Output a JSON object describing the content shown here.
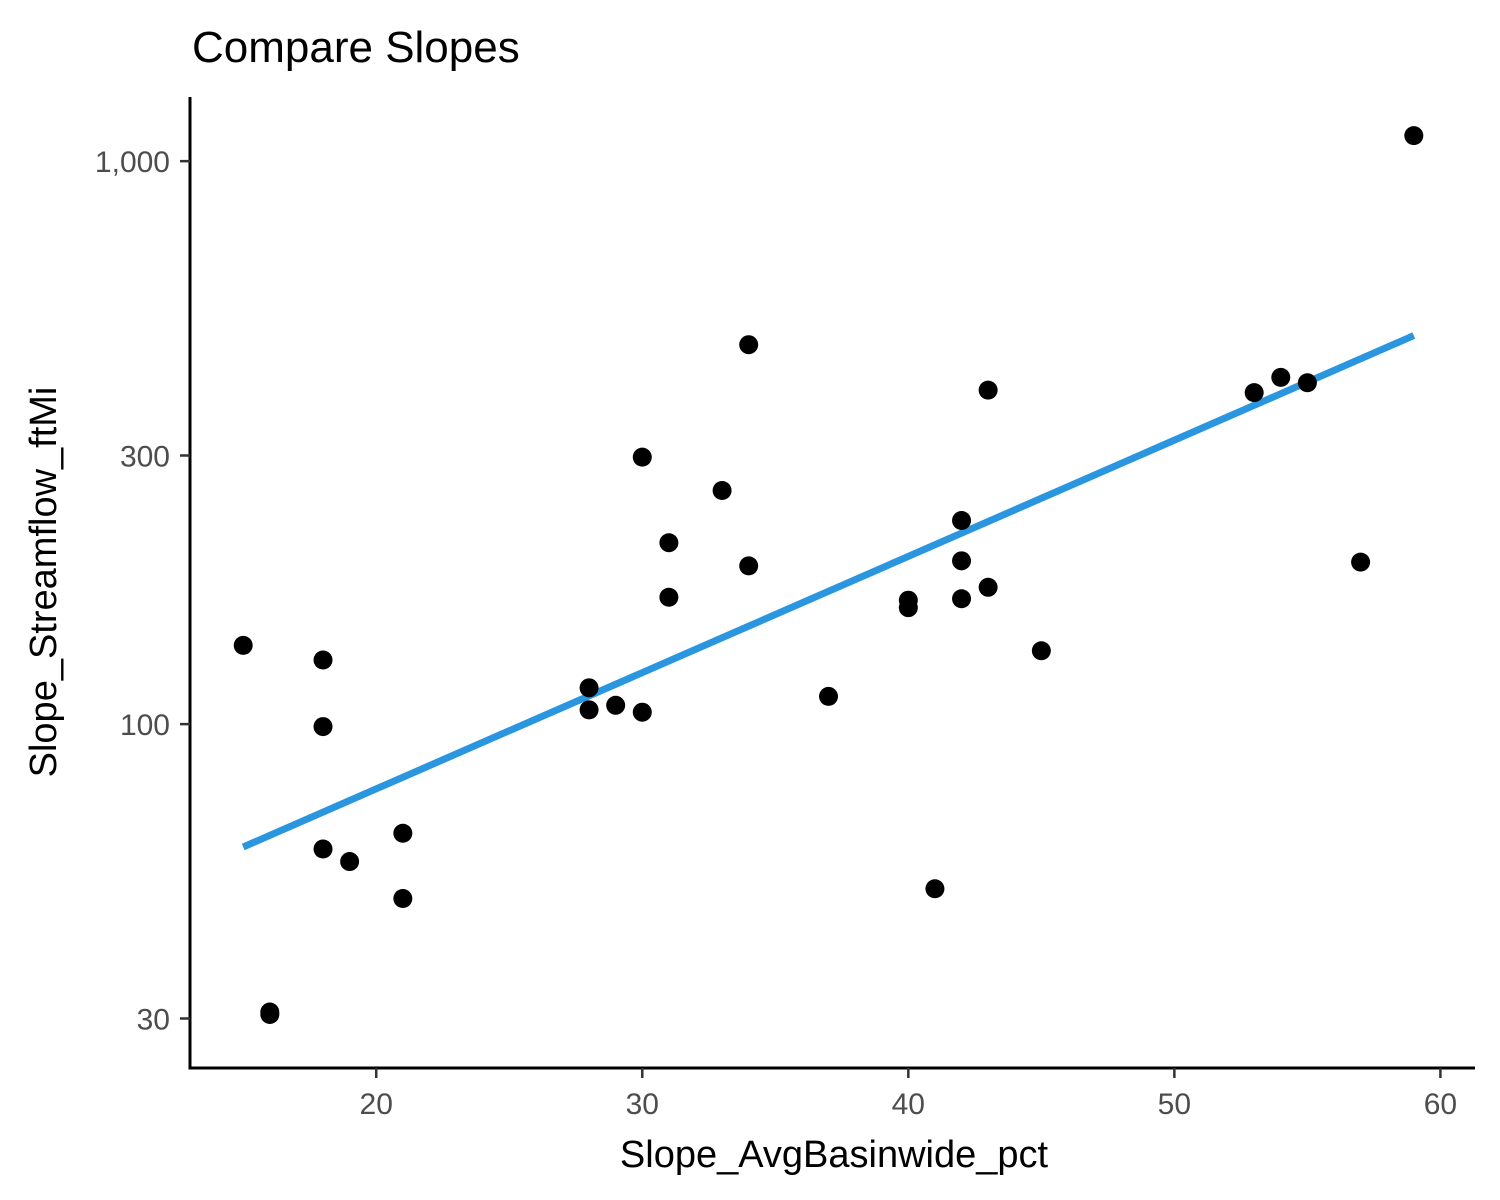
{
  "chart_data": {
    "type": "scatter",
    "title": "Compare Slopes",
    "xlabel": "Slope_AvgBasinwide_pct",
    "ylabel": "Slope_Streamflow_ftMi",
    "xlim": [
      13,
      61.3
    ],
    "ylim": [
      24.5,
      1300
    ],
    "y_scale": "log10",
    "x_ticks": [
      20,
      30,
      40,
      50,
      60
    ],
    "y_ticks": [
      30,
      100,
      300,
      1000
    ],
    "y_tick_labels": [
      "30",
      "100",
      "300",
      "1,000"
    ],
    "grid": false,
    "legend": "none",
    "point_color": "#000000",
    "trend_color": "#2b96e0",
    "points": [
      {
        "x": 15,
        "y": 138
      },
      {
        "x": 16,
        "y": 30.5
      },
      {
        "x": 16,
        "y": 30.8
      },
      {
        "x": 18,
        "y": 130
      },
      {
        "x": 18,
        "y": 99
      },
      {
        "x": 18,
        "y": 60
      },
      {
        "x": 19,
        "y": 57
      },
      {
        "x": 21,
        "y": 64
      },
      {
        "x": 21,
        "y": 49
      },
      {
        "x": 28,
        "y": 116
      },
      {
        "x": 28,
        "y": 106
      },
      {
        "x": 29,
        "y": 108
      },
      {
        "x": 30,
        "y": 105
      },
      {
        "x": 30,
        "y": 298
      },
      {
        "x": 31,
        "y": 210
      },
      {
        "x": 31,
        "y": 168
      },
      {
        "x": 33,
        "y": 260
      },
      {
        "x": 34,
        "y": 472
      },
      {
        "x": 34,
        "y": 191
      },
      {
        "x": 37,
        "y": 112
      },
      {
        "x": 40,
        "y": 166
      },
      {
        "x": 40,
        "y": 161
      },
      {
        "x": 41,
        "y": 51
      },
      {
        "x": 42,
        "y": 230
      },
      {
        "x": 42,
        "y": 195
      },
      {
        "x": 42,
        "y": 167
      },
      {
        "x": 43,
        "y": 392
      },
      {
        "x": 43,
        "y": 175
      },
      {
        "x": 45,
        "y": 135
      },
      {
        "x": 53,
        "y": 388
      },
      {
        "x": 54,
        "y": 413
      },
      {
        "x": 55,
        "y": 404
      },
      {
        "x": 57,
        "y": 194
      },
      {
        "x": 59,
        "y": 1110
      }
    ],
    "trend_line": {
      "x": [
        15,
        59
      ],
      "y": [
        60.5,
        490
      ]
    }
  }
}
